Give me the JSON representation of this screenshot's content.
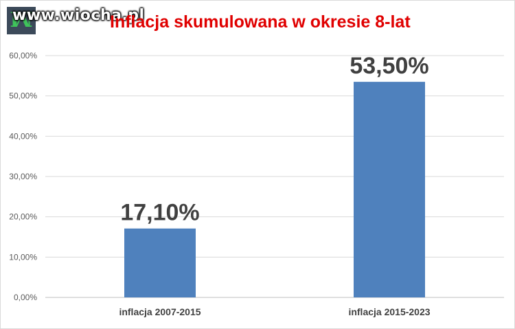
{
  "watermark": "www.wiocha.pl",
  "chart_data": {
    "type": "bar",
    "title": "Inflacja skumulowana w okresie 8-lat",
    "categories": [
      "inflacja 2007-2015",
      "inflacja 2015-2023"
    ],
    "values": [
      17.1,
      53.5
    ],
    "data_labels": [
      "17,10%",
      "53,50%"
    ],
    "yticks": [
      "0,00%",
      "10,00%",
      "20,00%",
      "30,00%",
      "40,00%",
      "50,00%",
      "60,00%"
    ],
    "ylim": [
      0,
      60
    ],
    "ystep": 10,
    "grid": true,
    "legend": "none",
    "bar_color": "#4f81bd"
  }
}
